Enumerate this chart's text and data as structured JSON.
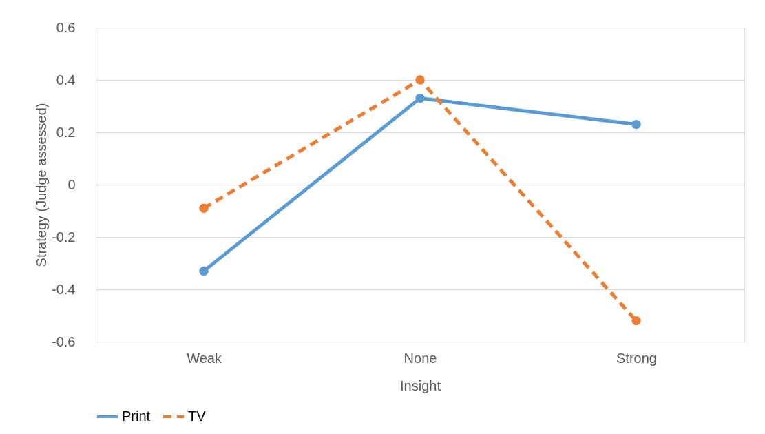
{
  "chart_data": {
    "type": "line",
    "xlabel": "Insight",
    "ylabel": "Strategy (Judge assessed)",
    "categories": [
      "Weak",
      "None",
      "Strong"
    ],
    "series": [
      {
        "name": "Print",
        "color": "#5b9bd5",
        "values": [
          -0.33,
          0.33,
          0.23
        ],
        "line_style": "solid"
      },
      {
        "name": "TV",
        "color": "#ed7d31",
        "values": [
          -0.09,
          0.4,
          -0.52
        ],
        "line_style": "dashed"
      }
    ],
    "ylim": [
      -0.6,
      0.6
    ],
    "yticks": [
      -0.6,
      -0.4,
      -0.2,
      0,
      0.2,
      0.4,
      0.6
    ],
    "grid": "y",
    "legend": "bottom",
    "marker": "circle"
  }
}
